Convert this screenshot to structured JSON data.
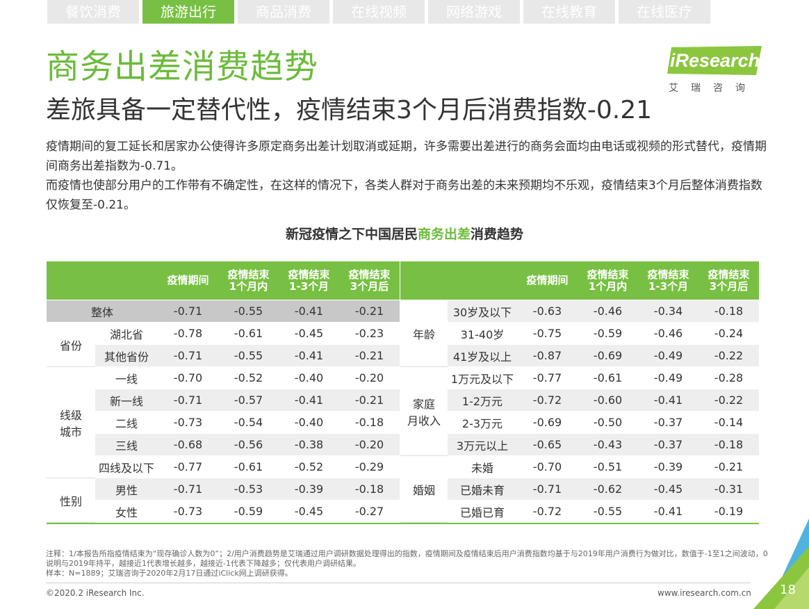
{
  "tabs": [
    "餐饮消费",
    "旅游出行",
    "商品消费",
    "在线视频",
    "网络游戏",
    "在线教育",
    "在线医疗"
  ],
  "active_tab": 1,
  "logo": {
    "text": "iResearch",
    "cn": "艾瑞咨询"
  },
  "title": "商务出差消费趋势",
  "subtitle": "差旅具备一定替代性，疫情结束3个月后消费指数-0.21",
  "paragraphs": [
    "疫情期间的复工延长和居家办公使得许多原定商务出差计划取消或延期，许多需要出差进行的商务会面均由电话或视频的形式替代，疫情期间商务出差指数为-0.71。",
    "而疫情也使部分用户的工作带有不确定性，在这样的情况下，各类人群对于商务出差的未来预期均不乐观，疫情结束3个月后整体消费指数仅恢复至-0.21。"
  ],
  "table_title": {
    "pre": "新冠疫情之下中国居民",
    "hl": "商务出差",
    "post": "消费趋势"
  },
  "columns": [
    "疫情期间",
    "疫情结束\n1个月内",
    "疫情结束\n1-3个月",
    "疫情结束\n3个月后"
  ],
  "left_groups": [
    {
      "group": "",
      "rows": [
        {
          "label": "整体",
          "values": [
            "-0.71",
            "-0.55",
            "-0.41",
            "-0.21"
          ]
        }
      ]
    },
    {
      "group": "省份",
      "rows": [
        {
          "label": "湖北省",
          "values": [
            "-0.78",
            "-0.61",
            "-0.45",
            "-0.23"
          ]
        },
        {
          "label": "其他省份",
          "values": [
            "-0.71",
            "-0.55",
            "-0.41",
            "-0.21"
          ]
        }
      ]
    },
    {
      "group": "线级\n城市",
      "rows": [
        {
          "label": "一线",
          "values": [
            "-0.70",
            "-0.52",
            "-0.40",
            "-0.20"
          ]
        },
        {
          "label": "新一线",
          "values": [
            "-0.71",
            "-0.57",
            "-0.41",
            "-0.21"
          ]
        },
        {
          "label": "二线",
          "values": [
            "-0.73",
            "-0.54",
            "-0.40",
            "-0.18"
          ]
        },
        {
          "label": "三线",
          "values": [
            "-0.68",
            "-0.56",
            "-0.38",
            "-0.20"
          ]
        },
        {
          "label": "四线及以下",
          "values": [
            "-0.77",
            "-0.61",
            "-0.52",
            "-0.29"
          ]
        }
      ]
    },
    {
      "group": "性别",
      "rows": [
        {
          "label": "男性",
          "values": [
            "-0.71",
            "-0.53",
            "-0.39",
            "-0.18"
          ]
        },
        {
          "label": "女性",
          "values": [
            "-0.73",
            "-0.59",
            "-0.45",
            "-0.27"
          ]
        }
      ]
    }
  ],
  "right_groups": [
    {
      "group": "年龄",
      "rows": [
        {
          "label": "30岁及以下",
          "values": [
            "-0.63",
            "-0.46",
            "-0.34",
            "-0.18"
          ]
        },
        {
          "label": "31-40岁",
          "values": [
            "-0.75",
            "-0.59",
            "-0.46",
            "-0.24"
          ]
        },
        {
          "label": "41岁及以上",
          "values": [
            "-0.87",
            "-0.69",
            "-0.49",
            "-0.22"
          ]
        }
      ]
    },
    {
      "group": "家庭\n月收入",
      "rows": [
        {
          "label": "1万元及以下",
          "values": [
            "-0.77",
            "-0.61",
            "-0.49",
            "-0.28"
          ]
        },
        {
          "label": "1-2万元",
          "values": [
            "-0.72",
            "-0.60",
            "-0.41",
            "-0.22"
          ]
        },
        {
          "label": "2-3万元",
          "values": [
            "-0.69",
            "-0.50",
            "-0.37",
            "-0.14"
          ]
        },
        {
          "label": "3万元以上",
          "values": [
            "-0.65",
            "-0.43",
            "-0.37",
            "-0.18"
          ]
        }
      ]
    },
    {
      "group": "婚姻",
      "rows": [
        {
          "label": "未婚",
          "values": [
            "-0.70",
            "-0.51",
            "-0.39",
            "-0.21"
          ]
        },
        {
          "label": "已婚未育",
          "values": [
            "-0.71",
            "-0.62",
            "-0.45",
            "-0.31"
          ]
        },
        {
          "label": "已婚已育",
          "values": [
            "-0.72",
            "-0.55",
            "-0.41",
            "-0.19"
          ]
        }
      ]
    }
  ],
  "notes": [
    "注释：1/本报告所指疫情结束为“现存确诊人数为0”；2/用户消费趋势是艾瑞通过用户调研数据处理得出的指数，疫情期间及疫情结束后用户消费指数均基于与2019年用户消费行为做对比，数值于-1至1之间波动，0说明与2019年持平，越接近1代表增长越多，越接近-1代表下降越多；仅代表用户调研结果。",
    "样本：N=1889；艾瑞咨询于2020年2月17日通过iClick网上调研获得。"
  ],
  "copyright": "©2020.2 iResearch Inc.",
  "website": "www.iresearch.com.cn",
  "page_number": "18",
  "colors": {
    "accent": "#78c043",
    "title": "#6cbb3c",
    "row_alt": "#eeeeee",
    "total_row": "#c8c8c8"
  }
}
